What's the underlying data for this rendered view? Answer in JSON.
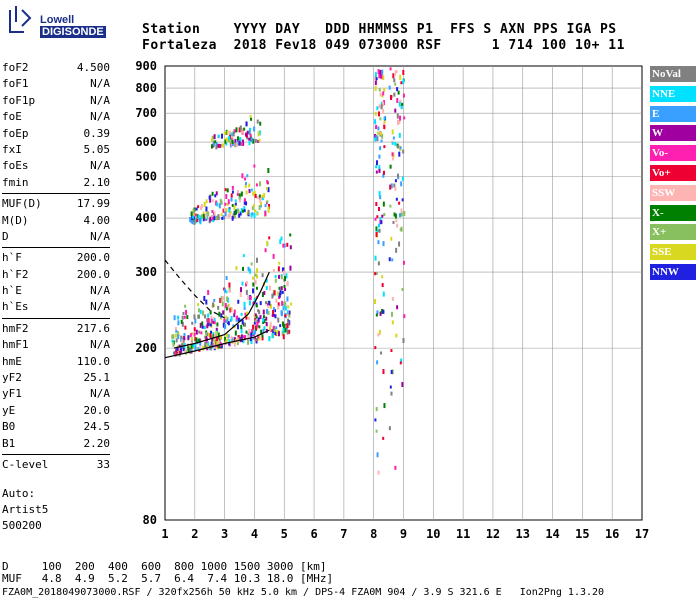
{
  "logo": {
    "brand": "Lowell",
    "product": "DIGISONDE"
  },
  "header": {
    "row1": "Station    YYYY DAY   DDD HHMMSS P1  FFS S AXN PPS IGA PS",
    "row2": "Fortaleza  2018 Fev18 049 073000 RSF      1 714 100 10+ 11"
  },
  "params": [
    {
      "label": "foF2",
      "value": "4.500"
    },
    {
      "label": "foF1",
      "value": "N/A"
    },
    {
      "label": "foF1p",
      "value": "N/A"
    },
    {
      "label": "foE",
      "value": "N/A"
    },
    {
      "label": "foEp",
      "value": "0.39"
    },
    {
      "label": "fxI",
      "value": "5.05"
    },
    {
      "label": "foEs",
      "value": "N/A"
    },
    {
      "label": "fmin",
      "value": "2.10"
    },
    {
      "label": "MUF(D)",
      "value": "17.99"
    },
    {
      "label": "M(D)",
      "value": "4.00"
    },
    {
      "label": "D",
      "value": "N/A"
    },
    {
      "label": "h`F",
      "value": "200.0"
    },
    {
      "label": "h`F2",
      "value": "200.0"
    },
    {
      "label": "h`E",
      "value": "N/A"
    },
    {
      "label": "h`Es",
      "value": "N/A"
    },
    {
      "label": "hmF2",
      "value": "217.6"
    },
    {
      "label": "hmF1",
      "value": "N/A"
    },
    {
      "label": "hmE",
      "value": "110.0"
    },
    {
      "label": "yF2",
      "value": "25.1"
    },
    {
      "label": "yF1",
      "value": "N/A"
    },
    {
      "label": "yE",
      "value": "20.0"
    },
    {
      "label": "B0",
      "value": "24.5"
    },
    {
      "label": "B1",
      "value": "2.20"
    },
    {
      "label": "C-level",
      "value": "33"
    }
  ],
  "extra": {
    "auto": "Auto:",
    "artist": "Artist5",
    "code": "500200"
  },
  "footer": {
    "d_row": "D     100  200  400  600  800 1000 1500 3000 [km]",
    "muf_row": "MUF   4.8  4.9  5.2  5.7  6.4  7.4 10.3 18.0 [MHz]",
    "file_row": "FZA0M_2018049073000.RSF / 320fx256h 50 kHz 5.0 km / DPS-4 FZA0M 904 / 3.9 S 321.6 E   Ion2Png 1.3.20"
  },
  "legend": [
    {
      "label": "NoVal",
      "color": "#808080"
    },
    {
      "label": "NNE",
      "color": "#00e0ff"
    },
    {
      "label": "E",
      "color": "#3aa0ff"
    },
    {
      "label": "W",
      "color": "#a000a0"
    },
    {
      "label": "Vo-",
      "color": "#ff1fb0"
    },
    {
      "label": "Vo+",
      "color": "#ee0033"
    },
    {
      "label": "SSW",
      "color": "#ffb4b4"
    },
    {
      "label": "X-",
      "color": "#008000"
    },
    {
      "label": "X+",
      "color": "#88c060"
    },
    {
      "label": "SSE",
      "color": "#d8d820"
    },
    {
      "label": "NNW",
      "color": "#2020e0"
    }
  ],
  "chart_data": {
    "type": "scatter",
    "title": "",
    "xlabel": "",
    "ylabel": "",
    "xlim": [
      1,
      17
    ],
    "ylim": [
      80,
      900
    ],
    "xticks": [
      1,
      2,
      3,
      4,
      5,
      6,
      7,
      8,
      9,
      10,
      11,
      12,
      13,
      14,
      15,
      16,
      17
    ],
    "yticks": [
      80,
      200,
      300,
      400,
      500,
      600,
      700,
      800,
      900
    ],
    "grid": true,
    "legend_position": "right",
    "y_scale": "log-like (ionogram virtual height)",
    "traces": [
      {
        "name": "o-trace F2 (estimated)",
        "points": [
          [
            1.3,
            200
          ],
          [
            2,
            205
          ],
          [
            3,
            215
          ],
          [
            3.8,
            240
          ],
          [
            4.2,
            270
          ],
          [
            4.5,
            300
          ]
        ]
      },
      {
        "name": "profile curve (estimated)",
        "points": [
          [
            1,
            190
          ],
          [
            2,
            197
          ],
          [
            3,
            205
          ],
          [
            4,
            212
          ],
          [
            4.5,
            220
          ]
        ]
      },
      {
        "name": "dashed profile (estimated)",
        "points": [
          [
            1,
            320
          ],
          [
            1.5,
            290
          ],
          [
            2,
            265
          ],
          [
            2.5,
            245
          ],
          [
            3,
            235
          ]
        ]
      }
    ],
    "echo_clusters": [
      {
        "desc": "main F echoes",
        "x_range": [
          1.2,
          5.2
        ],
        "y_range": [
          195,
          340
        ]
      },
      {
        "desc": "2nd hop",
        "x_range": [
          1.8,
          4.5
        ],
        "y_range": [
          395,
          520
        ]
      },
      {
        "desc": "3rd hop",
        "x_range": [
          2.5,
          4.2
        ],
        "y_range": [
          590,
          700
        ]
      },
      {
        "desc": "spread echoes near 8-9 MHz",
        "x_range": [
          8,
          9
        ],
        "y_range": [
          100,
          900
        ]
      }
    ]
  }
}
